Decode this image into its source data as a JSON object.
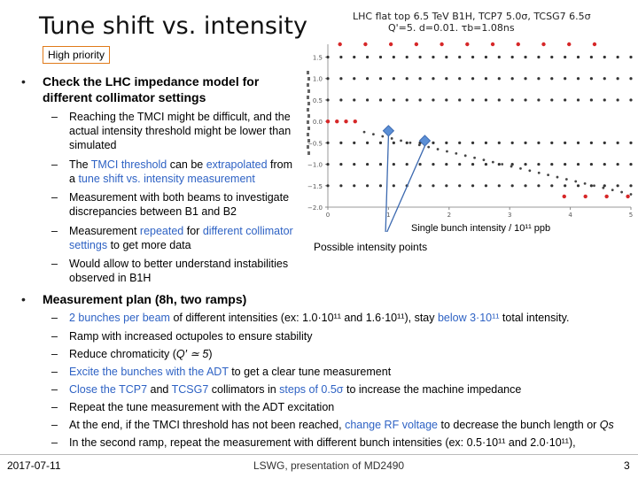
{
  "title": "Tune shift vs. intensity",
  "priority_label": "High priority",
  "bullet1": {
    "text": "Check the LHC impedance model for different collimator settings",
    "subs": [
      [
        {
          "t": "Reaching the TMCI might be difficult, and the actual intensity threshold might be lower than simulated"
        }
      ],
      [
        {
          "t": "The "
        },
        {
          "t": "TMCI threshold",
          "h": true
        },
        {
          "t": " can be "
        },
        {
          "t": "extrapolated",
          "h": true
        },
        {
          "t": " from a "
        },
        {
          "t": "tune shift vs. intensity measurement",
          "h": true
        }
      ],
      [
        {
          "t": "Measurement with both beams to investigate discrepancies between B1 and B2"
        }
      ],
      [
        {
          "t": "Measurement "
        },
        {
          "t": "repeated",
          "h": true
        },
        {
          "t": " for "
        },
        {
          "t": "different collimator settings",
          "h": true
        },
        {
          "t": " to get more data"
        }
      ],
      [
        {
          "t": "Would allow to better understand instabilities observed in B1H"
        }
      ]
    ]
  },
  "bullet2": {
    "text": "Measurement plan (8h, two ramps)",
    "subs": [
      [
        {
          "t": "2 bunches per beam",
          "h": true
        },
        {
          "t": " of different intensities (ex: 1.0·10¹¹ and 1.6·10¹¹), stay "
        },
        {
          "t": "below 3·10¹¹",
          "h": true
        },
        {
          "t": " total intensity."
        }
      ],
      [
        {
          "t": "Ramp with increased octupoles to ensure stability"
        }
      ],
      [
        {
          "t": "Reduce chromaticity ("
        },
        {
          "t": "Q′ ≃ 5",
          "i": true
        },
        {
          "t": ")"
        }
      ],
      [
        {
          "t": "Excite the bunches with the ADT",
          "h": true
        },
        {
          "t": " to get a clear tune measurement"
        }
      ],
      [
        {
          "t": "Close the ",
          "h": true
        },
        {
          "t": "TCP7",
          "h": true
        },
        {
          "t": " and "
        },
        {
          "t": "TCSG7",
          "h": true
        },
        {
          "t": " collimators in "
        },
        {
          "t": "steps of 0.5σ",
          "h": true
        },
        {
          "t": " to increase the machine impedance"
        }
      ],
      [
        {
          "t": "Repeat the tune measurement with the ADT excitation"
        }
      ],
      [
        {
          "t": "At the end, if the TMCI threshold has not been reached, "
        },
        {
          "t": "change RF voltage",
          "h": true
        },
        {
          "t": " to decrease the bunch length or "
        },
        {
          "t": "Qs",
          "i": true
        }
      ],
      [
        {
          "t": "In the second ramp, repeat the measurement with different bunch intensities (ex: 0.5·10¹¹ and 2.0·10¹¹),"
        }
      ]
    ]
  },
  "plot": {
    "title_line1": "LHC flat top 6.5 TeV B1H, TCP7 5.0σ, TCSG7 6.5σ",
    "title_line2": "Q'=5. d=0.01. τb=1.08ns",
    "x_label": "Single bunch intensity / 10¹¹ ppb",
    "annotation": "Possible intensity points",
    "y_ticks": [
      "1.5",
      "1.0",
      "0.5",
      "0.0",
      "−0.5",
      "−1.0",
      "−1.5",
      "−2.0"
    ],
    "x_ticks": [
      "0",
      "1",
      "2",
      "3",
      "4",
      "5"
    ]
  },
  "chart_data": {
    "type": "scatter",
    "title": "LHC flat top 6.5 TeV B1H, TCP7 5.0σ, TCSG7 6.5σ Q'=5. d=0.01. τb=1.08ns",
    "xlabel": "Single bunch intensity / 10¹¹ ppb",
    "ylabel": "",
    "xlim": [
      0,
      5
    ],
    "ylim": [
      -2.0,
      1.8
    ],
    "y_rows_black": [
      1.5,
      1.0,
      0.5,
      -0.5,
      -1.0,
      -1.5
    ],
    "y_rows_red": [
      1.8,
      0.0,
      -1.75
    ],
    "tune_shift_line": {
      "x": [
        0,
        5
      ],
      "y": [
        -0.05,
        -1.7
      ]
    },
    "possible_points": [
      {
        "x": 1.0,
        "y": -0.22
      },
      {
        "x": 1.6,
        "y": -0.45
      }
    ],
    "colors": {
      "mode_dots": "#333333",
      "mode0": "#d62728",
      "marker": "#5b8fd6",
      "line": "#3d6ab0"
    }
  },
  "footer": {
    "date": "2017-07-11",
    "center": "LSWG, presentation of MD2490",
    "page": "3"
  }
}
